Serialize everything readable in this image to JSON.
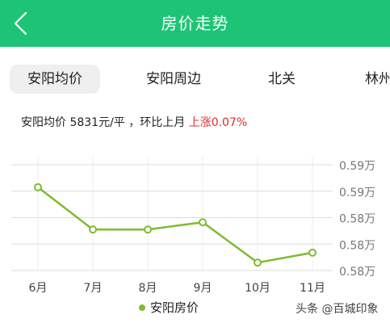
{
  "header": {
    "title": "房价走势",
    "back_icon": "chevron-left-icon",
    "bg_color": "#1ec476"
  },
  "tabs": [
    {
      "label": "安阳均价",
      "active": true
    },
    {
      "label": "安阳周边",
      "active": false
    },
    {
      "label": "北关",
      "active": false
    },
    {
      "label": "林州",
      "active": false
    }
  ],
  "summary": {
    "prefix": "安阳均价 5831元/平 ，环比上月 ",
    "change": "上涨0.07%",
    "change_color": "#e02b2b"
  },
  "legend": {
    "label": "安阳房价",
    "color": "#7cbd2e"
  },
  "watermark": "头条 @百城印象",
  "chart_data": {
    "type": "line",
    "categories": [
      "6月",
      "7月",
      "8月",
      "9月",
      "10月",
      "11月"
    ],
    "series": [
      {
        "name": "安阳房价",
        "values": [
          5906,
          5842,
          5842,
          5853,
          5792,
          5807
        ],
        "color": "#7cbd2e"
      }
    ],
    "y_tick_labels": [
      "0.59万",
      "0.59万",
      "0.58万",
      "0.58万",
      "0.58万"
    ],
    "ylim": [
      5780,
      5940
    ],
    "grid": true,
    "legend_position": "bottom-center"
  }
}
